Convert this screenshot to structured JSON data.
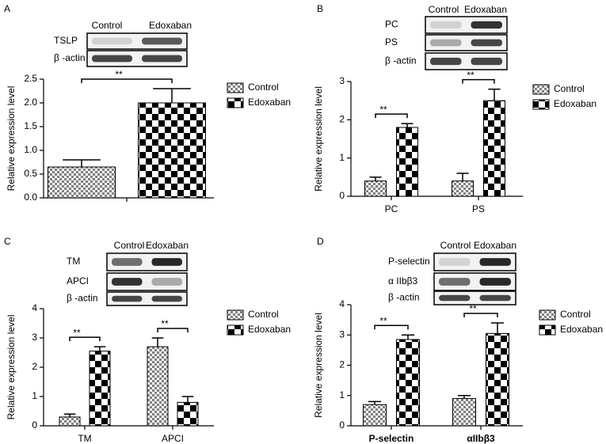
{
  "chart_data": [
    {
      "type": "bar",
      "panel_label": "A",
      "ylabel": "Relative expression level",
      "blot": {
        "columns": [
          "Control",
          "Edoxaban"
        ],
        "rows": [
          "TSLP",
          "β -actin"
        ]
      },
      "categories": [
        null
      ],
      "series": [
        {
          "name": "Control",
          "color": "#808080",
          "values": [
            0.65
          ],
          "errors": [
            0.15
          ]
        },
        {
          "name": "Edoxaban",
          "color": "#000000",
          "values": [
            2.0
          ],
          "errors": [
            0.3
          ]
        }
      ],
      "significance": [
        "**"
      ],
      "ylim": [
        0,
        2.5
      ],
      "yticks": [
        {
          "value": 0,
          "label": "0.0"
        },
        0.5,
        {
          "value": 1,
          "label": "1.0"
        },
        1.5,
        {
          "value": 2,
          "label": "2.0"
        },
        2.5
      ]
    },
    {
      "type": "bar",
      "panel_label": "B",
      "ylabel": "Relative expression level",
      "blot": {
        "columns": [
          "Control",
          "Edoxaban"
        ],
        "rows": [
          "PC",
          "PS",
          "β -actin"
        ]
      },
      "categories": [
        "PC",
        "PS"
      ],
      "series": [
        {
          "name": "Control",
          "color": "#808080",
          "values": [
            0.4,
            0.4
          ],
          "errors": [
            0.1,
            0.2
          ]
        },
        {
          "name": "Edoxaban",
          "color": "#000000",
          "values": [
            1.8,
            2.5
          ],
          "errors": [
            0.1,
            0.3
          ]
        }
      ],
      "significance": [
        "**",
        "**"
      ],
      "ylim": [
        0,
        3
      ],
      "yticks": [
        0,
        1,
        2,
        3
      ]
    },
    {
      "type": "bar",
      "panel_label": "C",
      "ylabel": "Relative expression level",
      "blot": {
        "columns": [
          "Control",
          "Edoxaban"
        ],
        "rows": [
          "TM",
          "APCI",
          "β -actin"
        ]
      },
      "categories": [
        "TM",
        "APCI"
      ],
      "series": [
        {
          "name": "Control",
          "color": "#808080",
          "values": [
            0.3,
            2.7
          ],
          "errors": [
            0.1,
            0.3
          ]
        },
        {
          "name": "Edoxaban",
          "color": "#000000",
          "values": [
            2.55,
            0.8
          ],
          "errors": [
            0.15,
            0.2
          ]
        }
      ],
      "significance": [
        "**",
        "**"
      ],
      "ylim": [
        0,
        4
      ],
      "yticks": [
        0,
        1,
        2,
        3,
        4
      ]
    },
    {
      "type": "bar",
      "panel_label": "D",
      "ylabel": "Relative expression level",
      "blot": {
        "columns": [
          "Control",
          "Edoxaban"
        ],
        "rows": [
          "P-selectin",
          "α IIbβ3",
          "β -actin"
        ]
      },
      "categories": [
        "P-selectin",
        "αIIbβ3"
      ],
      "series": [
        {
          "name": "Control",
          "color": "#808080",
          "values": [
            0.7,
            0.9
          ],
          "errors": [
            0.1,
            0.1
          ]
        },
        {
          "name": "Edoxaban",
          "color": "#000000",
          "values": [
            2.85,
            3.05
          ],
          "errors": [
            0.15,
            0.35
          ]
        }
      ],
      "significance": [
        "**",
        "**"
      ],
      "ylim": [
        0,
        4
      ],
      "yticks": [
        0,
        1,
        2,
        3,
        4
      ]
    }
  ]
}
